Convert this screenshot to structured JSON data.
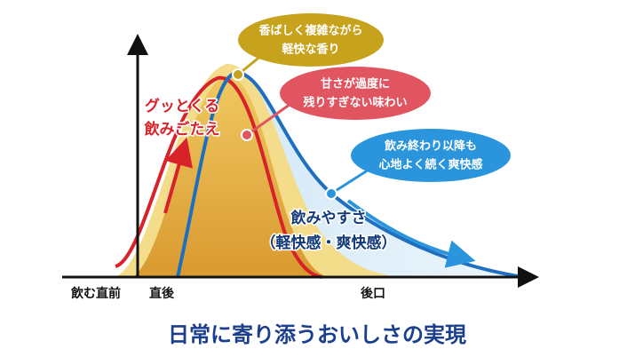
{
  "axis_labels": {
    "before": "飲む直前",
    "right_after": "直後",
    "aftertaste": "後口"
  },
  "bubbles": [
    {
      "lines": [
        "香ばしく複雑ながら",
        "軽快な香り"
      ]
    },
    {
      "lines": [
        "甘さが過度に",
        "残りすぎない味わい"
      ]
    },
    {
      "lines": [
        "飲み終わり以降も",
        "心地よく続く爽快感"
      ]
    }
  ],
  "annotations": {
    "impact": [
      "グッとくる",
      "飲みごたえ"
    ],
    "drinkability": [
      "飲みやすさ",
      "（軽快感・爽快感）"
    ]
  },
  "title": "日常に寄り添うおいしさの実現"
}
